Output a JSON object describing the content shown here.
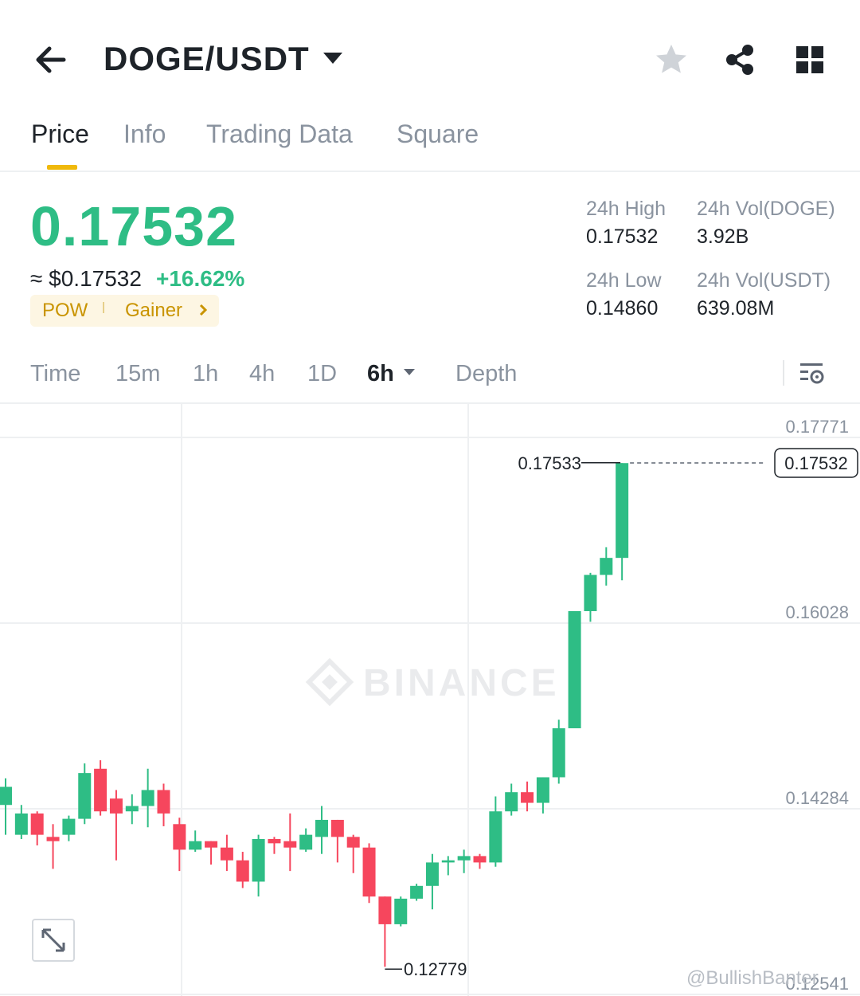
{
  "header": {
    "pair": "DOGE/USDT"
  },
  "tabs": [
    {
      "label": "Price"
    },
    {
      "label": "Info"
    },
    {
      "label": "Trading Data"
    },
    {
      "label": "Square"
    }
  ],
  "price": {
    "last": "0.17532",
    "usd": "≈ $0.17532",
    "change": "+16.62%"
  },
  "tags": {
    "pow": "POW",
    "gainer": "Gainer"
  },
  "stats": {
    "high_label": "24h High",
    "high": "0.17532",
    "low_label": "24h Low",
    "low": "0.14860",
    "vol_doge_label": "24h Vol(DOGE)",
    "vol_doge": "3.92B",
    "vol_usdt_label": "24h Vol(USDT)",
    "vol_usdt": "639.08M"
  },
  "intervals": [
    "Time",
    "15m",
    "1h",
    "4h",
    "1D",
    "6h",
    "Depth"
  ],
  "watermark": "BINANCE",
  "footer": "@BullishBanter",
  "colors": {
    "up": "#2ebd85",
    "down": "#f6465d",
    "accent": "#f0b90b"
  },
  "chart_data": {
    "type": "candlestick",
    "y_ticks": [
      "0.17771",
      "0.16028",
      "0.14284",
      "0.12541"
    ],
    "last_price_label": "0.17532",
    "high_marker": "0.17533",
    "low_marker": "0.12779",
    "candles": [
      [
        0.1432,
        0.1449,
        0.1404,
        0.1457
      ],
      [
        0.1404,
        0.1424,
        0.14,
        0.1432
      ],
      [
        0.1424,
        0.1404,
        0.1394,
        0.1426
      ],
      [
        0.1402,
        0.1398,
        0.1372,
        0.1414
      ],
      [
        0.1404,
        0.1419,
        0.1398,
        0.1422
      ],
      [
        0.1419,
        0.1462,
        0.1414,
        0.1471
      ],
      [
        0.1466,
        0.1426,
        0.1422,
        0.1474
      ],
      [
        0.1438,
        0.1424,
        0.138,
        0.1446
      ],
      [
        0.1426,
        0.1431,
        0.1414,
        0.1442
      ],
      [
        0.1431,
        0.1446,
        0.1411,
        0.1466
      ],
      [
        0.1446,
        0.1424,
        0.1412,
        0.1452
      ],
      [
        0.1414,
        0.139,
        0.137,
        0.142
      ],
      [
        0.139,
        0.1398,
        0.1388,
        0.1408
      ],
      [
        0.1398,
        0.1392,
        0.1376,
        0.1398
      ],
      [
        0.1392,
        0.138,
        0.137,
        0.1404
      ],
      [
        0.138,
        0.136,
        0.1354,
        0.1388
      ],
      [
        0.136,
        0.14,
        0.1346,
        0.1404
      ],
      [
        0.14,
        0.1396,
        0.1386,
        0.1402
      ],
      [
        0.1398,
        0.1392,
        0.137,
        0.1424
      ],
      [
        0.139,
        0.1404,
        0.1388,
        0.141
      ],
      [
        0.1402,
        0.1418,
        0.1386,
        0.1431
      ],
      [
        0.1418,
        0.1402,
        0.1378,
        0.1418
      ],
      [
        0.1402,
        0.1392,
        0.1368,
        0.1404
      ],
      [
        0.1392,
        0.1346,
        0.134,
        0.1396
      ],
      [
        0.1346,
        0.132,
        0.128,
        0.1346
      ],
      [
        0.132,
        0.1344,
        0.1318,
        0.1346
      ],
      [
        0.1344,
        0.1356,
        0.1342,
        0.1358
      ],
      [
        0.1356,
        0.1378,
        0.1334,
        0.1386
      ],
      [
        0.1378,
        0.138,
        0.1366,
        0.1384
      ],
      [
        0.138,
        0.1384,
        0.1368,
        0.139
      ],
      [
        0.1384,
        0.1378,
        0.1372,
        0.1386
      ],
      [
        0.1378,
        0.1426,
        0.1374,
        0.144
      ],
      [
        0.1426,
        0.1444,
        0.1422,
        0.1452
      ],
      [
        0.1444,
        0.1434,
        0.1426,
        0.1454
      ],
      [
        0.1434,
        0.1458,
        0.1424,
        0.1458
      ],
      [
        0.1458,
        0.1504,
        0.1452,
        0.1512
      ],
      [
        0.1504,
        0.1614,
        0.1504,
        0.1614
      ],
      [
        0.1614,
        0.1648,
        0.1604,
        0.165
      ],
      [
        0.1648,
        0.1664,
        0.1638,
        0.1674
      ],
      [
        0.1664,
        0.1753,
        0.1643,
        0.1753
      ]
    ]
  }
}
